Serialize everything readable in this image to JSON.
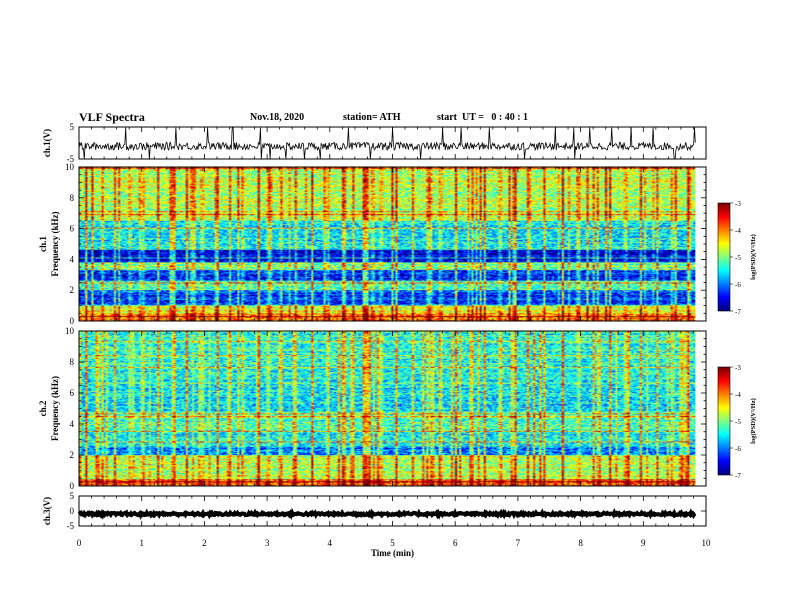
{
  "header": {
    "title": "VLF Spectra",
    "date": "Nov.18, 2020",
    "station": "station= ATH",
    "start_ut": "start  UT =   0 : 40 : 1"
  },
  "chart_data": [
    {
      "type": "line",
      "panel": "ch1-waveform",
      "ylabel": "ch.1(V)",
      "ylim": [
        -5,
        5
      ],
      "y_ticks": [
        "5",
        "-5"
      ],
      "xlim": [
        0,
        10
      ],
      "x_extent_end": 9.83,
      "baseline": -1,
      "noise_amplitude": 1.2,
      "spike_times": [
        0.08,
        0.75,
        1.12,
        1.55,
        2.05,
        2.45,
        2.9,
        3.05,
        3.3,
        3.6,
        3.85,
        4.3,
        4.65,
        5.0,
        5.45,
        5.8,
        6.1,
        6.55,
        7.1,
        7.6,
        7.9,
        8.15,
        8.5,
        8.8,
        9.15,
        9.5,
        9.82
      ]
    },
    {
      "type": "heatmap",
      "panel": "ch1-spectrogram",
      "ylabel": "ch.1",
      "ylabel2": "Frequency  (kHz)",
      "ylim": [
        0,
        10
      ],
      "y_ticks": [
        "0",
        "2",
        "4",
        "6",
        "8",
        "10"
      ],
      "xlim": [
        0,
        10
      ],
      "x_extent_end": 9.83,
      "colorbar": {
        "label": "log(PSD)(V²/Hz)",
        "ticks": [
          "-3",
          "-4",
          "-5",
          "-6",
          "-7"
        ],
        "range": [
          -7,
          -3
        ]
      },
      "band_levels": [
        {
          "f": [
            0.0,
            0.5
          ],
          "level": -4.0
        },
        {
          "f": [
            0.5,
            1.0
          ],
          "level": -4.6
        },
        {
          "f": [
            1.0,
            2.0
          ],
          "level": -6.3
        },
        {
          "f": [
            2.0,
            2.6
          ],
          "level": -5.3
        },
        {
          "f": [
            2.6,
            3.3
          ],
          "level": -6.4
        },
        {
          "f": [
            3.3,
            3.8
          ],
          "level": -5.0
        },
        {
          "f": [
            3.8,
            4.6
          ],
          "level": -6.6
        },
        {
          "f": [
            4.6,
            6.5
          ],
          "level": -5.5
        },
        {
          "f": [
            6.5,
            10.0
          ],
          "level": -4.8
        }
      ],
      "sferic_times": [
        0.1,
        0.35,
        0.55,
        0.8,
        1.0,
        1.25,
        1.5,
        1.7,
        1.95,
        2.2,
        2.4,
        2.6,
        2.85,
        3.0,
        3.2,
        3.45,
        3.7,
        3.95,
        4.2,
        4.35,
        4.55,
        4.8,
        5.05,
        5.3,
        5.55,
        5.75,
        6.0,
        6.25,
        6.45,
        6.7,
        6.95,
        7.15,
        7.4,
        7.7,
        7.95,
        8.2,
        8.45,
        8.7,
        8.95,
        9.2,
        9.45,
        9.7
      ]
    },
    {
      "type": "heatmap",
      "panel": "ch2-spectrogram",
      "ylabel": "ch.2",
      "ylabel2": "Frequency  (kHz)",
      "ylim": [
        0,
        10
      ],
      "y_ticks": [
        "0",
        "2",
        "4",
        "6",
        "8",
        "10"
      ],
      "xlim": [
        0,
        10
      ],
      "x_extent_end": 9.83,
      "colorbar": {
        "label": "log(PSD)(V²/Hz)",
        "ticks": [
          "-3",
          "-4",
          "-5",
          "-6",
          "-7"
        ],
        "range": [
          -7,
          -3
        ]
      },
      "band_levels": [
        {
          "f": [
            0.0,
            0.4
          ],
          "level": -3.9
        },
        {
          "f": [
            0.4,
            2.0
          ],
          "level": -4.8
        },
        {
          "f": [
            2.0,
            2.5
          ],
          "level": -6.0
        },
        {
          "f": [
            2.5,
            3.5
          ],
          "level": -5.6
        },
        {
          "f": [
            3.5,
            4.8
          ],
          "level": -5.2
        },
        {
          "f": [
            4.8,
            6.4
          ],
          "level": -5.6
        },
        {
          "f": [
            6.4,
            10.0
          ],
          "level": -5.4
        }
      ],
      "sferic_times": [
        0.1,
        0.35,
        0.55,
        0.8,
        1.0,
        1.25,
        1.5,
        1.7,
        1.95,
        2.2,
        2.4,
        2.6,
        2.85,
        3.0,
        3.2,
        3.45,
        3.7,
        3.95,
        4.2,
        4.35,
        4.55,
        4.8,
        5.05,
        5.3,
        5.55,
        5.75,
        6.0,
        6.25,
        6.45,
        6.7,
        6.95,
        7.15,
        7.4,
        7.7,
        7.95,
        8.2,
        8.45,
        8.7,
        8.95,
        9.2,
        9.45,
        9.7
      ]
    },
    {
      "type": "line",
      "panel": "ch3-waveform",
      "ylabel": "ch.3(V)",
      "ylim": [
        -5,
        5
      ],
      "y_ticks": [
        "5",
        "0",
        "-5"
      ],
      "xlim": [
        0,
        10
      ],
      "x_extent_end": 9.83,
      "baseline": -1,
      "noise_amplitude": 0.4,
      "xlabel": "Time  (min)",
      "x_ticks": [
        "0",
        "1",
        "2",
        "3",
        "4",
        "5",
        "6",
        "7",
        "8",
        "9",
        "10"
      ]
    }
  ]
}
